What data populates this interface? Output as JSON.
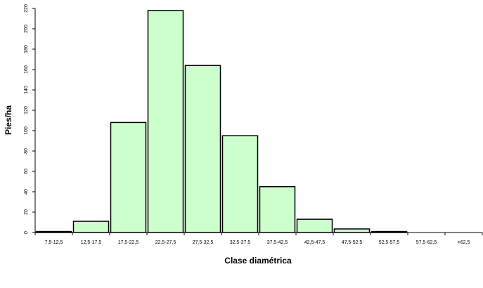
{
  "colors": {
    "bar_fill": "#ccffcc",
    "bar_stroke": "#000000",
    "axis": "#000000",
    "background": "#ffffff"
  },
  "chart_data": {
    "type": "bar",
    "title": "",
    "xlabel": "Clase diamétrica",
    "ylabel": "Pies/ha",
    "categories": [
      "7,5-12,5",
      "12,5-17,5",
      "17,5-22,5",
      "22,5-27,5",
      "27,5-32,5",
      "32,5-37,5",
      "37,5-42,5",
      "42,5-47,5",
      "47,5-52,5",
      "52,5-57,5",
      "57,5-62,5",
      ">62,5"
    ],
    "values": [
      1,
      11,
      108,
      218,
      164,
      95,
      45,
      13,
      3.5,
      1,
      0,
      0
    ],
    "ylim": [
      0,
      220
    ],
    "yticks": [
      0,
      20,
      40,
      60,
      80,
      100,
      120,
      140,
      160,
      180,
      200,
      220
    ],
    "grid": false,
    "legend": "none"
  }
}
